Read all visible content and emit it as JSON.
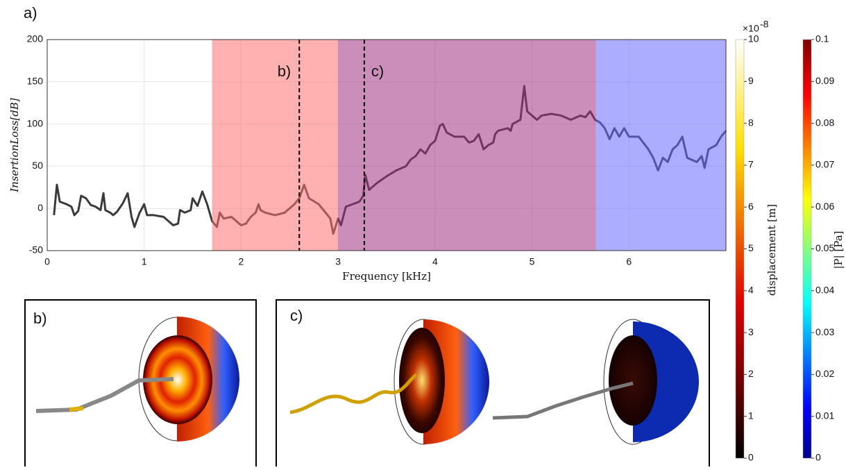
{
  "figure_label": "a)",
  "chart_data": {
    "type": "line",
    "xlabel": "Frequency [kHz]",
    "ylabel": "InsertionLoss[dB]",
    "x": [
      0.07,
      0.1,
      0.13,
      0.2,
      0.25,
      0.28,
      0.32,
      0.35,
      0.4,
      0.45,
      0.5,
      0.55,
      0.58,
      0.6,
      0.65,
      0.68,
      0.72,
      0.78,
      0.83,
      0.87,
      0.9,
      0.95,
      1.0,
      1.03,
      1.1,
      1.2,
      1.3,
      1.35,
      1.37,
      1.42,
      1.48,
      1.5,
      1.55,
      1.6,
      1.65,
      1.7,
      1.75,
      1.78,
      1.82,
      1.9,
      2.0,
      2.05,
      2.1,
      2.15,
      2.18,
      2.2,
      2.25,
      2.35,
      2.45,
      2.55,
      2.6,
      2.65,
      2.7,
      2.8,
      2.85,
      2.92,
      2.95,
      3.0,
      3.03,
      3.08,
      3.15,
      3.22,
      3.26,
      3.28,
      3.32,
      3.4,
      3.5,
      3.6,
      3.7,
      3.75,
      3.8,
      3.85,
      3.9,
      3.95,
      4.0,
      4.05,
      4.08,
      4.12,
      4.2,
      4.3,
      4.35,
      4.4,
      4.45,
      4.5,
      4.55,
      4.6,
      4.62,
      4.65,
      4.75,
      4.78,
      4.8,
      4.88,
      4.92,
      4.95,
      5.0,
      5.05,
      5.1,
      5.2,
      5.3,
      5.4,
      5.5,
      5.55,
      5.6,
      5.65,
      5.7,
      5.75,
      5.8,
      5.85,
      5.9,
      5.95,
      6.0,
      6.1,
      6.2,
      6.25,
      6.3,
      6.35,
      6.4,
      6.45,
      6.5,
      6.55,
      6.6,
      6.7,
      6.75,
      6.78,
      6.82,
      6.9,
      6.95,
      7.0
    ],
    "values": [
      -8,
      28,
      8,
      5,
      2,
      -8,
      -3,
      15,
      12,
      4,
      2,
      -2,
      18,
      -2,
      -5,
      -8,
      -4,
      6,
      18,
      -10,
      -22,
      -6,
      5,
      -8,
      -8,
      -10,
      -20,
      -18,
      -2,
      -5,
      -2,
      12,
      3,
      20,
      5,
      -15,
      -22,
      -5,
      -12,
      -10,
      -20,
      -18,
      -10,
      -5,
      5,
      -2,
      -5,
      -8,
      -5,
      5,
      12,
      28,
      12,
      5,
      -2,
      -12,
      -30,
      -12,
      -20,
      2,
      5,
      8,
      15,
      40,
      22,
      30,
      38,
      45,
      50,
      58,
      62,
      70,
      65,
      75,
      80,
      98,
      100,
      90,
      85,
      85,
      78,
      80,
      88,
      70,
      75,
      78,
      88,
      92,
      95,
      92,
      100,
      105,
      145,
      115,
      110,
      105,
      110,
      112,
      110,
      105,
      110,
      108,
      115,
      105,
      102,
      95,
      82,
      95,
      85,
      95,
      85,
      85,
      70,
      60,
      45,
      60,
      55,
      70,
      75,
      85,
      60,
      55,
      62,
      48,
      70,
      75,
      85,
      92
    ],
    "color": "#3a3a3a",
    "xlim": [
      0,
      7
    ],
    "xticks": [
      0,
      1,
      2,
      3,
      4,
      5,
      6
    ],
    "ylim": [
      -50,
      200
    ],
    "yticks": [
      -50,
      0,
      50,
      100,
      150,
      200
    ],
    "grid": true,
    "regions": [
      {
        "from": 1.7,
        "to": 3.0,
        "color": "#ff7070"
      },
      {
        "from": 3.0,
        "to": 5.66,
        "color": "#a0307f"
      },
      {
        "from": 5.66,
        "to": 7.0,
        "color": "#6a6aff"
      }
    ],
    "markers": [
      {
        "x": 2.6,
        "label": "b)"
      },
      {
        "x": 3.27,
        "label": "c)"
      }
    ]
  },
  "colorbars": [
    {
      "label": "displacement [m]",
      "colormap": "hot",
      "lim": [
        0,
        10
      ],
      "ticks": [
        0,
        1,
        2,
        3,
        4,
        5,
        6,
        7,
        8,
        9,
        10
      ],
      "multiplier": {
        "base": "×10",
        "exponent": "-8"
      }
    },
    {
      "label": "|P| [Pa]",
      "colormap": "jet",
      "lim": [
        0,
        0.1
      ],
      "ticks": [
        0,
        0.01,
        0.02,
        0.03,
        0.04,
        0.05,
        0.06,
        0.07,
        0.08,
        0.09,
        0.1
      ]
    }
  ],
  "panels": [
    {
      "label": "b)"
    },
    {
      "label": "c)"
    }
  ]
}
